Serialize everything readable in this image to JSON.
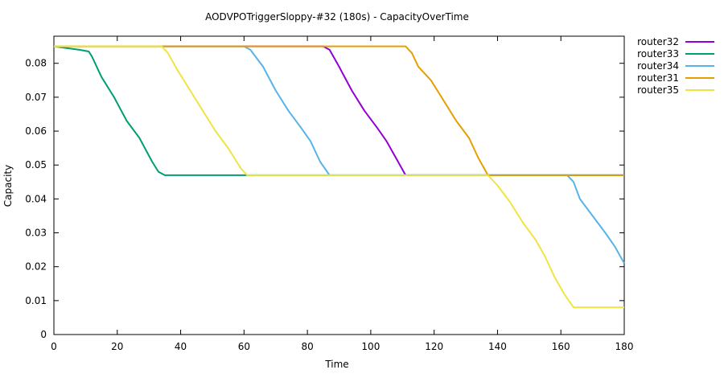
{
  "chart_data": {
    "type": "line",
    "title": "AODVPOTriggerSloppy-#32 (180s) - CapacityOverTime",
    "xlabel": "Time",
    "ylabel": "Capacity",
    "xlim": [
      0,
      180
    ],
    "ylim": [
      0,
      0.088
    ],
    "xticks": [
      0,
      20,
      40,
      60,
      80,
      100,
      120,
      140,
      160,
      180
    ],
    "yticks": [
      0,
      0.01,
      0.02,
      0.03,
      0.04,
      0.05,
      0.06,
      0.07,
      0.08
    ],
    "grid": false,
    "legend_position": "outside-right",
    "series": [
      {
        "name": "router32",
        "color": "#9400d3",
        "points": [
          [
            0,
            0.085
          ],
          [
            85,
            0.085
          ],
          [
            87,
            0.084
          ],
          [
            90,
            0.079
          ],
          [
            94,
            0.072
          ],
          [
            98,
            0.066
          ],
          [
            102,
            0.061
          ],
          [
            105,
            0.057
          ],
          [
            108,
            0.052
          ],
          [
            111,
            0.047
          ],
          [
            180,
            0.047
          ]
        ]
      },
      {
        "name": "router33",
        "color": "#009e73",
        "points": [
          [
            0,
            0.085
          ],
          [
            4,
            0.0845
          ],
          [
            8,
            0.084
          ],
          [
            11,
            0.0835
          ],
          [
            12,
            0.082
          ],
          [
            15,
            0.076
          ],
          [
            19,
            0.07
          ],
          [
            23,
            0.063
          ],
          [
            27,
            0.058
          ],
          [
            31,
            0.051
          ],
          [
            33,
            0.048
          ],
          [
            35,
            0.047
          ],
          [
            180,
            0.047
          ]
        ]
      },
      {
        "name": "router34",
        "color": "#56b4e9",
        "points": [
          [
            0,
            0.085
          ],
          [
            60,
            0.085
          ],
          [
            62,
            0.084
          ],
          [
            66,
            0.079
          ],
          [
            70,
            0.072
          ],
          [
            74,
            0.066
          ],
          [
            78,
            0.061
          ],
          [
            81,
            0.057
          ],
          [
            84,
            0.051
          ],
          [
            87,
            0.047
          ],
          [
            162,
            0.047
          ],
          [
            164,
            0.045
          ],
          [
            166,
            0.04
          ],
          [
            170,
            0.035
          ],
          [
            174,
            0.03
          ],
          [
            177,
            0.026
          ],
          [
            180,
            0.021
          ]
        ]
      },
      {
        "name": "router31",
        "color": "#e69f00",
        "points": [
          [
            0,
            0.085
          ],
          [
            111,
            0.085
          ],
          [
            113,
            0.083
          ],
          [
            115,
            0.079
          ],
          [
            119,
            0.075
          ],
          [
            123,
            0.069
          ],
          [
            127,
            0.063
          ],
          [
            131,
            0.058
          ],
          [
            134,
            0.052
          ],
          [
            137,
            0.047
          ],
          [
            180,
            0.047
          ]
        ]
      },
      {
        "name": "router35",
        "color": "#f0e442",
        "points": [
          [
            0,
            0.085
          ],
          [
            34,
            0.085
          ],
          [
            36,
            0.083
          ],
          [
            39,
            0.078
          ],
          [
            43,
            0.072
          ],
          [
            47,
            0.066
          ],
          [
            51,
            0.06
          ],
          [
            55,
            0.055
          ],
          [
            59,
            0.049
          ],
          [
            61,
            0.047
          ],
          [
            137,
            0.047
          ],
          [
            140,
            0.044
          ],
          [
            144,
            0.039
          ],
          [
            148,
            0.033
          ],
          [
            152,
            0.028
          ],
          [
            155,
            0.023
          ],
          [
            158,
            0.017
          ],
          [
            161,
            0.012
          ],
          [
            164,
            0.008
          ],
          [
            180,
            0.008
          ]
        ]
      }
    ]
  }
}
